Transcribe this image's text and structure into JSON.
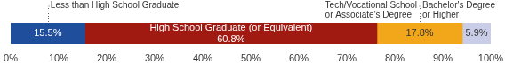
{
  "chart_data": {
    "type": "bar",
    "orientation": "horizontal",
    "stacked": true,
    "data_labels": true,
    "grid": false,
    "tick_labels": "x",
    "categories": [
      null
    ],
    "series": [
      {
        "name": "Less than High School Graduate",
        "color": "#1f4e9c",
        "values": [
          15.5
        ],
        "value_labels": [
          "15.5%"
        ]
      },
      {
        "name": "High School Graduate (or Equivalent)",
        "color": "#a01a12",
        "values": [
          60.8
        ],
        "value_labels": [
          "60.8%"
        ]
      },
      {
        "name": "Tech/Vocational School\nor Associate's Degree",
        "color": "#f2a71b",
        "values": [
          17.8
        ],
        "value_labels": [
          "17.8%"
        ]
      },
      {
        "name": "Bachelor's Degree\nor Higher",
        "color": "#c9cde8",
        "values": [
          5.9
        ],
        "value_labels": [
          "5.9%"
        ]
      }
    ],
    "xlim": [
      0,
      100
    ],
    "xticks": [
      {
        "value": 0,
        "label": "0%"
      },
      {
        "value": 10,
        "label": "10%"
      },
      {
        "value": 20,
        "label": "20%"
      },
      {
        "value": 30,
        "label": "30%"
      },
      {
        "value": 40,
        "label": "40%"
      },
      {
        "value": 50,
        "label": "50%"
      },
      {
        "value": 60,
        "label": "60%"
      },
      {
        "value": 70,
        "label": "70%"
      },
      {
        "value": 80,
        "label": "80%"
      },
      {
        "value": 90,
        "label": "90%"
      },
      {
        "value": 100,
        "label": "100%"
      }
    ]
  }
}
